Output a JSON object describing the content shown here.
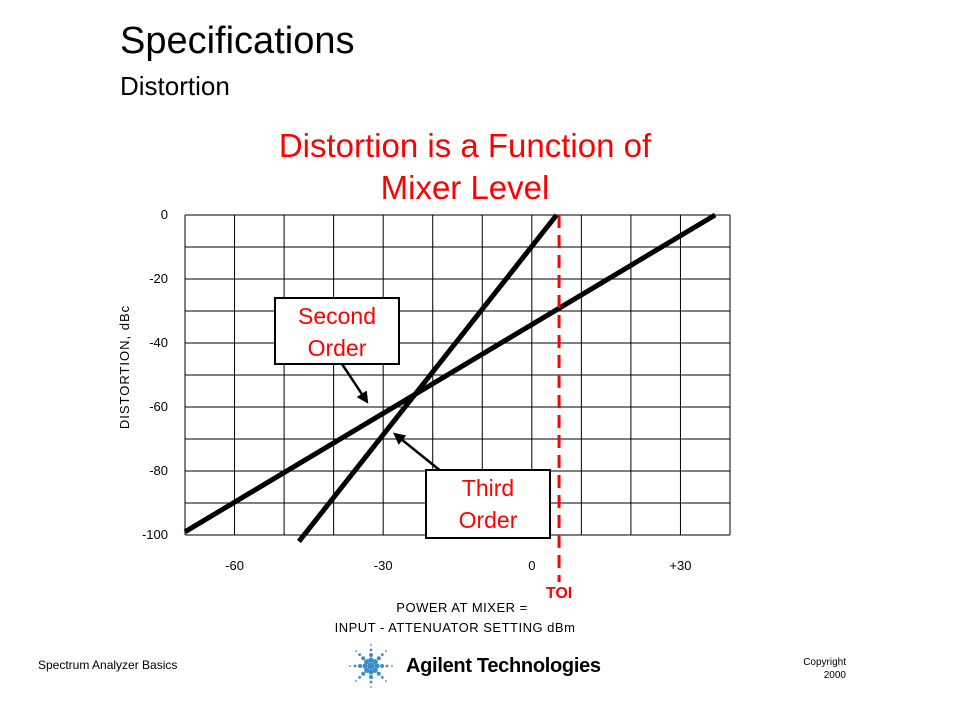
{
  "slide": {
    "title": "Specifications",
    "subtitle": "Distortion",
    "headline_line1": "Distortion is a Function of",
    "headline_line2": "Mixer Level",
    "accent_color": "#ff0000"
  },
  "chart_data": {
    "type": "line",
    "ylabel": "DISTORTION, dBc",
    "xlabel_line1": "POWER AT MIXER =",
    "xlabel_line2": "INPUT - ATTENUATOR SETTING dBm",
    "xlim": [
      -70,
      40
    ],
    "ylim": [
      -100,
      0
    ],
    "x_tick_labels": [
      {
        "value": -60,
        "label": "-60"
      },
      {
        "value": -30,
        "label": "-30"
      },
      {
        "value": 0,
        "label": "0"
      },
      {
        "value": 30,
        "label": "+30"
      }
    ],
    "y_tick_labels": [
      {
        "value": 0,
        "label": "0"
      },
      {
        "value": -20,
        "label": "-20"
      },
      {
        "value": -40,
        "label": "-40"
      },
      {
        "value": -60,
        "label": "-60"
      },
      {
        "value": -80,
        "label": "-80"
      },
      {
        "value": -100,
        "label": "-100"
      }
    ],
    "grid": true,
    "series": [
      {
        "name": "Second Order",
        "x": [
          -70,
          37
        ],
        "y": [
          -99,
          0
        ]
      },
      {
        "name": "Third Order",
        "x": [
          -47,
          5
        ],
        "y": [
          -102,
          0
        ]
      }
    ],
    "labels": [
      {
        "line1": "Second",
        "line2": "Order",
        "points_to": {
          "x": -33,
          "y": -59
        }
      },
      {
        "line1": "Third",
        "line2": "Order",
        "points_to": {
          "x": -28,
          "y": -68
        }
      }
    ],
    "marker": {
      "label": "TOI",
      "x": 5.5,
      "color": "#ff0000"
    }
  },
  "footer": {
    "left": "Spectrum Analyzer Basics",
    "copyright_line1": "Copyright",
    "copyright_line2": "2000",
    "logo_text": "Agilent Technologies"
  }
}
